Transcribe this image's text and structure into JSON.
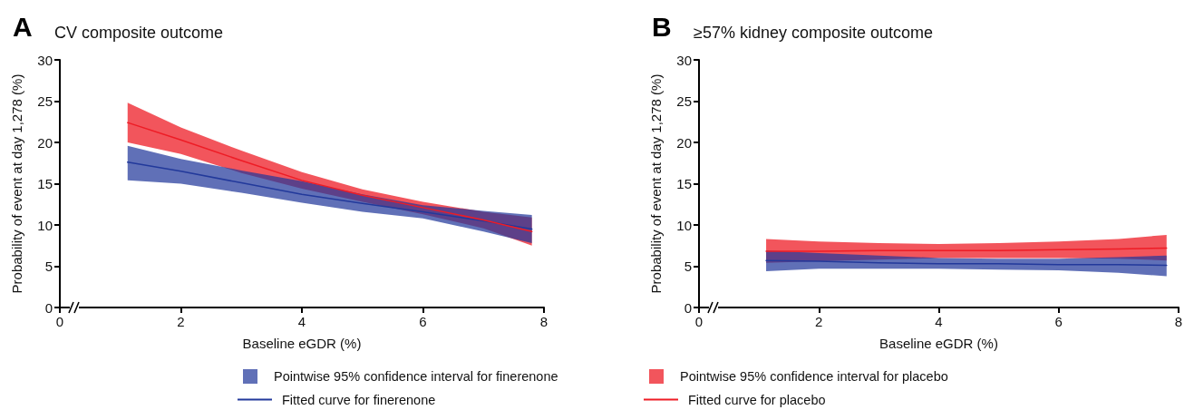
{
  "chart_data": [
    {
      "type": "line",
      "title": "CV composite outcome",
      "annotations": [
        "A",
        "Pointwise 95% confidence interval for finerenone",
        "Pointwise 95% confidence interval for placebo"
      ],
      "xlabel": "Baseline eGDR (%)",
      "ylabel": "Probability of event at day 1,278 (%)",
      "x": [
        1.12,
        2,
        3,
        4,
        5,
        6,
        7,
        7.8
      ],
      "xlim": [
        0,
        8
      ],
      "xticks": [
        0,
        2,
        4,
        6,
        8
      ],
      "ylim": [
        0,
        30
      ],
      "yticks": [
        0,
        5,
        10,
        15,
        20,
        25,
        30
      ],
      "grid": false,
      "legend": "bottom",
      "marker": "none",
      "line_style": "solid",
      "series": [
        {
          "name": "Fitted curve for finerenone",
          "color": "#22399b",
          "values": [
            17.6,
            16.5,
            15.1,
            13.7,
            12.6,
            11.6,
            10.5,
            9.5
          ],
          "upper": [
            19.6,
            18.0,
            16.6,
            15.3,
            13.7,
            12.4,
            11.7,
            11.2
          ],
          "lower": [
            15.4,
            15.0,
            13.9,
            12.7,
            11.6,
            10.8,
            9.2,
            7.8
          ]
        },
        {
          "name": "Fitted curve for placebo",
          "color": "#ee1c25",
          "values": [
            22.4,
            20.3,
            17.8,
            15.4,
            13.6,
            12.1,
            10.6,
            9.2
          ],
          "upper": [
            24.8,
            21.8,
            19.0,
            16.4,
            14.3,
            12.8,
            11.6,
            10.9
          ],
          "lower": [
            20.0,
            18.6,
            16.3,
            14.4,
            12.8,
            11.3,
            9.6,
            7.5
          ]
        }
      ]
    },
    {
      "type": "line",
      "title": "≥57% kidney composite outcome",
      "annotations": [
        "B"
      ],
      "xlabel": "Baseline eGDR (%)",
      "ylabel": "Probability of event at day 1,278 (%)",
      "x": [
        1.12,
        2,
        3,
        4,
        5,
        6,
        7,
        7.8
      ],
      "xlim": [
        0,
        8
      ],
      "xticks": [
        0,
        2,
        4,
        6,
        8
      ],
      "ylim": [
        0,
        30
      ],
      "yticks": [
        0,
        5,
        10,
        15,
        20,
        25,
        30
      ],
      "grid": false,
      "marker": "none",
      "line_style": "solid",
      "series": [
        {
          "color": "#22399b",
          "values": [
            5.7,
            5.6,
            5.4,
            5.3,
            5.3,
            5.2,
            5.2,
            5.1
          ],
          "upper": [
            6.9,
            6.6,
            6.3,
            6.0,
            5.9,
            5.9,
            6.1,
            6.3
          ],
          "lower": [
            4.4,
            4.7,
            4.7,
            4.7,
            4.6,
            4.5,
            4.2,
            3.8
          ]
        },
        {
          "color": "#ee1c25",
          "values": [
            6.8,
            6.8,
            6.9,
            6.9,
            6.9,
            7.0,
            7.1,
            7.2
          ],
          "upper": [
            8.3,
            8.0,
            7.8,
            7.7,
            7.8,
            8.0,
            8.3,
            8.8
          ],
          "lower": [
            5.4,
            5.6,
            5.8,
            6.0,
            6.0,
            6.0,
            5.9,
            5.7
          ]
        }
      ]
    }
  ]
}
